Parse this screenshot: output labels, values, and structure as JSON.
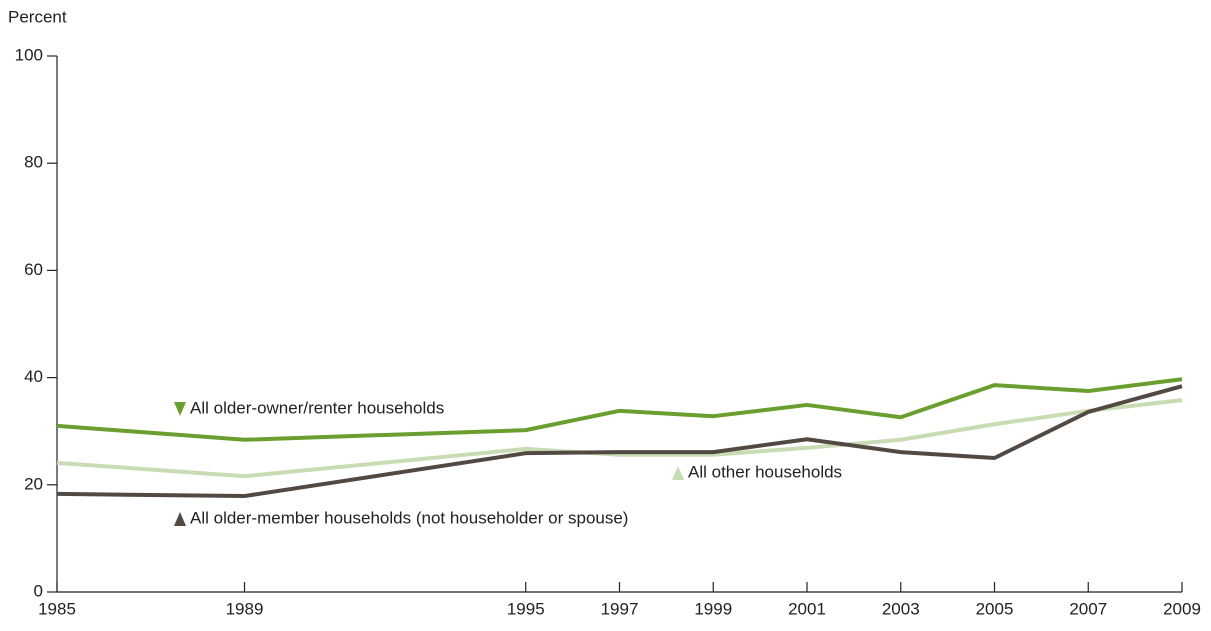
{
  "chart_data": {
    "type": "line",
    "y_label": "Percent",
    "x": [
      1985,
      1989,
      1995,
      1997,
      1999,
      2001,
      2003,
      2005,
      2007,
      2009
    ],
    "xlim": [
      1985,
      2009
    ],
    "xticks": [
      1985,
      1989,
      1995,
      1997,
      1999,
      2001,
      2003,
      2005,
      2007,
      2009
    ],
    "ylim": [
      0,
      100
    ],
    "yticks": [
      0,
      20,
      40,
      60,
      80,
      100
    ],
    "grid": false,
    "series": [
      {
        "name": "All older-owner/renter households",
        "color": "#6a9e2f",
        "values": [
          31.0,
          28.4,
          30.2,
          33.8,
          32.8,
          34.9,
          32.6,
          38.6,
          37.5,
          39.7
        ]
      },
      {
        "name": "All other households",
        "color": "#c8dcb4",
        "values": [
          24.1,
          21.6,
          26.7,
          25.6,
          25.6,
          26.9,
          28.4,
          31.3,
          33.8,
          35.8
        ]
      },
      {
        "name": "All older-member households (not householder or spouse)",
        "color": "#524a42",
        "values": [
          18.3,
          17.9,
          25.9,
          26.1,
          26.1,
          28.5,
          26.1,
          25.0,
          33.6,
          38.4
        ]
      }
    ]
  }
}
